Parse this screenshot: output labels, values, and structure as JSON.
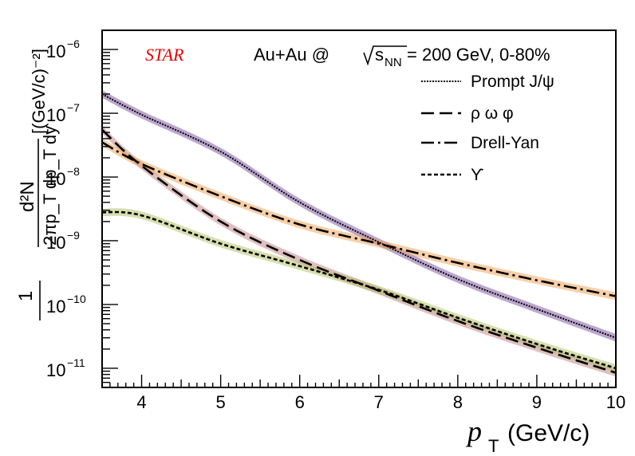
{
  "chart_data": {
    "type": "line",
    "experiment_label": "STAR",
    "collision_label": {
      "prefix": "Au+Au @ ",
      "sqrt_s": "s",
      "subscript": "NN",
      "suffix": " = 200 GeV, 0-80%"
    },
    "xlabel": {
      "var": "p",
      "sub": "T",
      "unit": " (GeV/c)"
    },
    "ylabel": {
      "num": "1",
      "frac_num": "d²N",
      "frac_den": "2πp_T dp_T dy",
      "unit": "[(GeV/c)⁻²]"
    },
    "xlim": [
      3.5,
      10
    ],
    "ylim": [
      5e-12,
      2e-06
    ],
    "y_scale": "log",
    "x_ticks": [
      "4",
      "5",
      "6",
      "7",
      "8",
      "9",
      "10"
    ],
    "y_ticks": [
      {
        "value": 1e-11,
        "base": "10",
        "exp": "−11"
      },
      {
        "value": 1e-10,
        "base": "10",
        "exp": "−10"
      },
      {
        "value": 1e-09,
        "base": "10",
        "exp": "−9"
      },
      {
        "value": 1e-08,
        "base": "10",
        "exp": "−8"
      },
      {
        "value": 1e-07,
        "base": "10",
        "exp": "−7"
      },
      {
        "value": 1e-06,
        "base": "10",
        "exp": "−6"
      }
    ],
    "legend_position": "top-right",
    "series": [
      {
        "name": "Prompt J/ψ",
        "style": "dotted-dense",
        "band_color": "#7a4fa0",
        "x": [
          3.5,
          4,
          5,
          6,
          7,
          8,
          9,
          10
        ],
        "y": [
          2e-07,
          9.5e-08,
          2.5e-08,
          4e-09,
          9.5e-10,
          2.5e-10,
          8.5e-11,
          3e-11
        ]
      },
      {
        "name": "ρ ω φ",
        "style": "long-dash",
        "band_color": "#c08080",
        "x": [
          3.5,
          4,
          5,
          6,
          7,
          8,
          9,
          10
        ],
        "y": [
          5.5e-08,
          1.5e-08,
          2e-09,
          5e-10,
          1.65e-10,
          5.5e-11,
          2.1e-11,
          8.5e-12
        ]
      },
      {
        "name": "Drell-Yan",
        "style": "dash-dot",
        "band_color": "#f0a050",
        "x": [
          3.5,
          4,
          5,
          6,
          7,
          8,
          9,
          10
        ],
        "y": [
          3.5e-08,
          1.6e-08,
          5e-09,
          1.8e-09,
          9e-10,
          4.5e-10,
          2.4e-10,
          1.35e-10
        ]
      },
      {
        "name": "ϒ",
        "style": "short-dash",
        "band_color": "#b0c060",
        "x": [
          3.5,
          4,
          5,
          6,
          7,
          8,
          9,
          10
        ],
        "y": [
          2.8e-09,
          2.5e-09,
          9e-10,
          4e-10,
          1.7e-10,
          6.2e-11,
          2.4e-11,
          1e-11
        ]
      }
    ]
  }
}
